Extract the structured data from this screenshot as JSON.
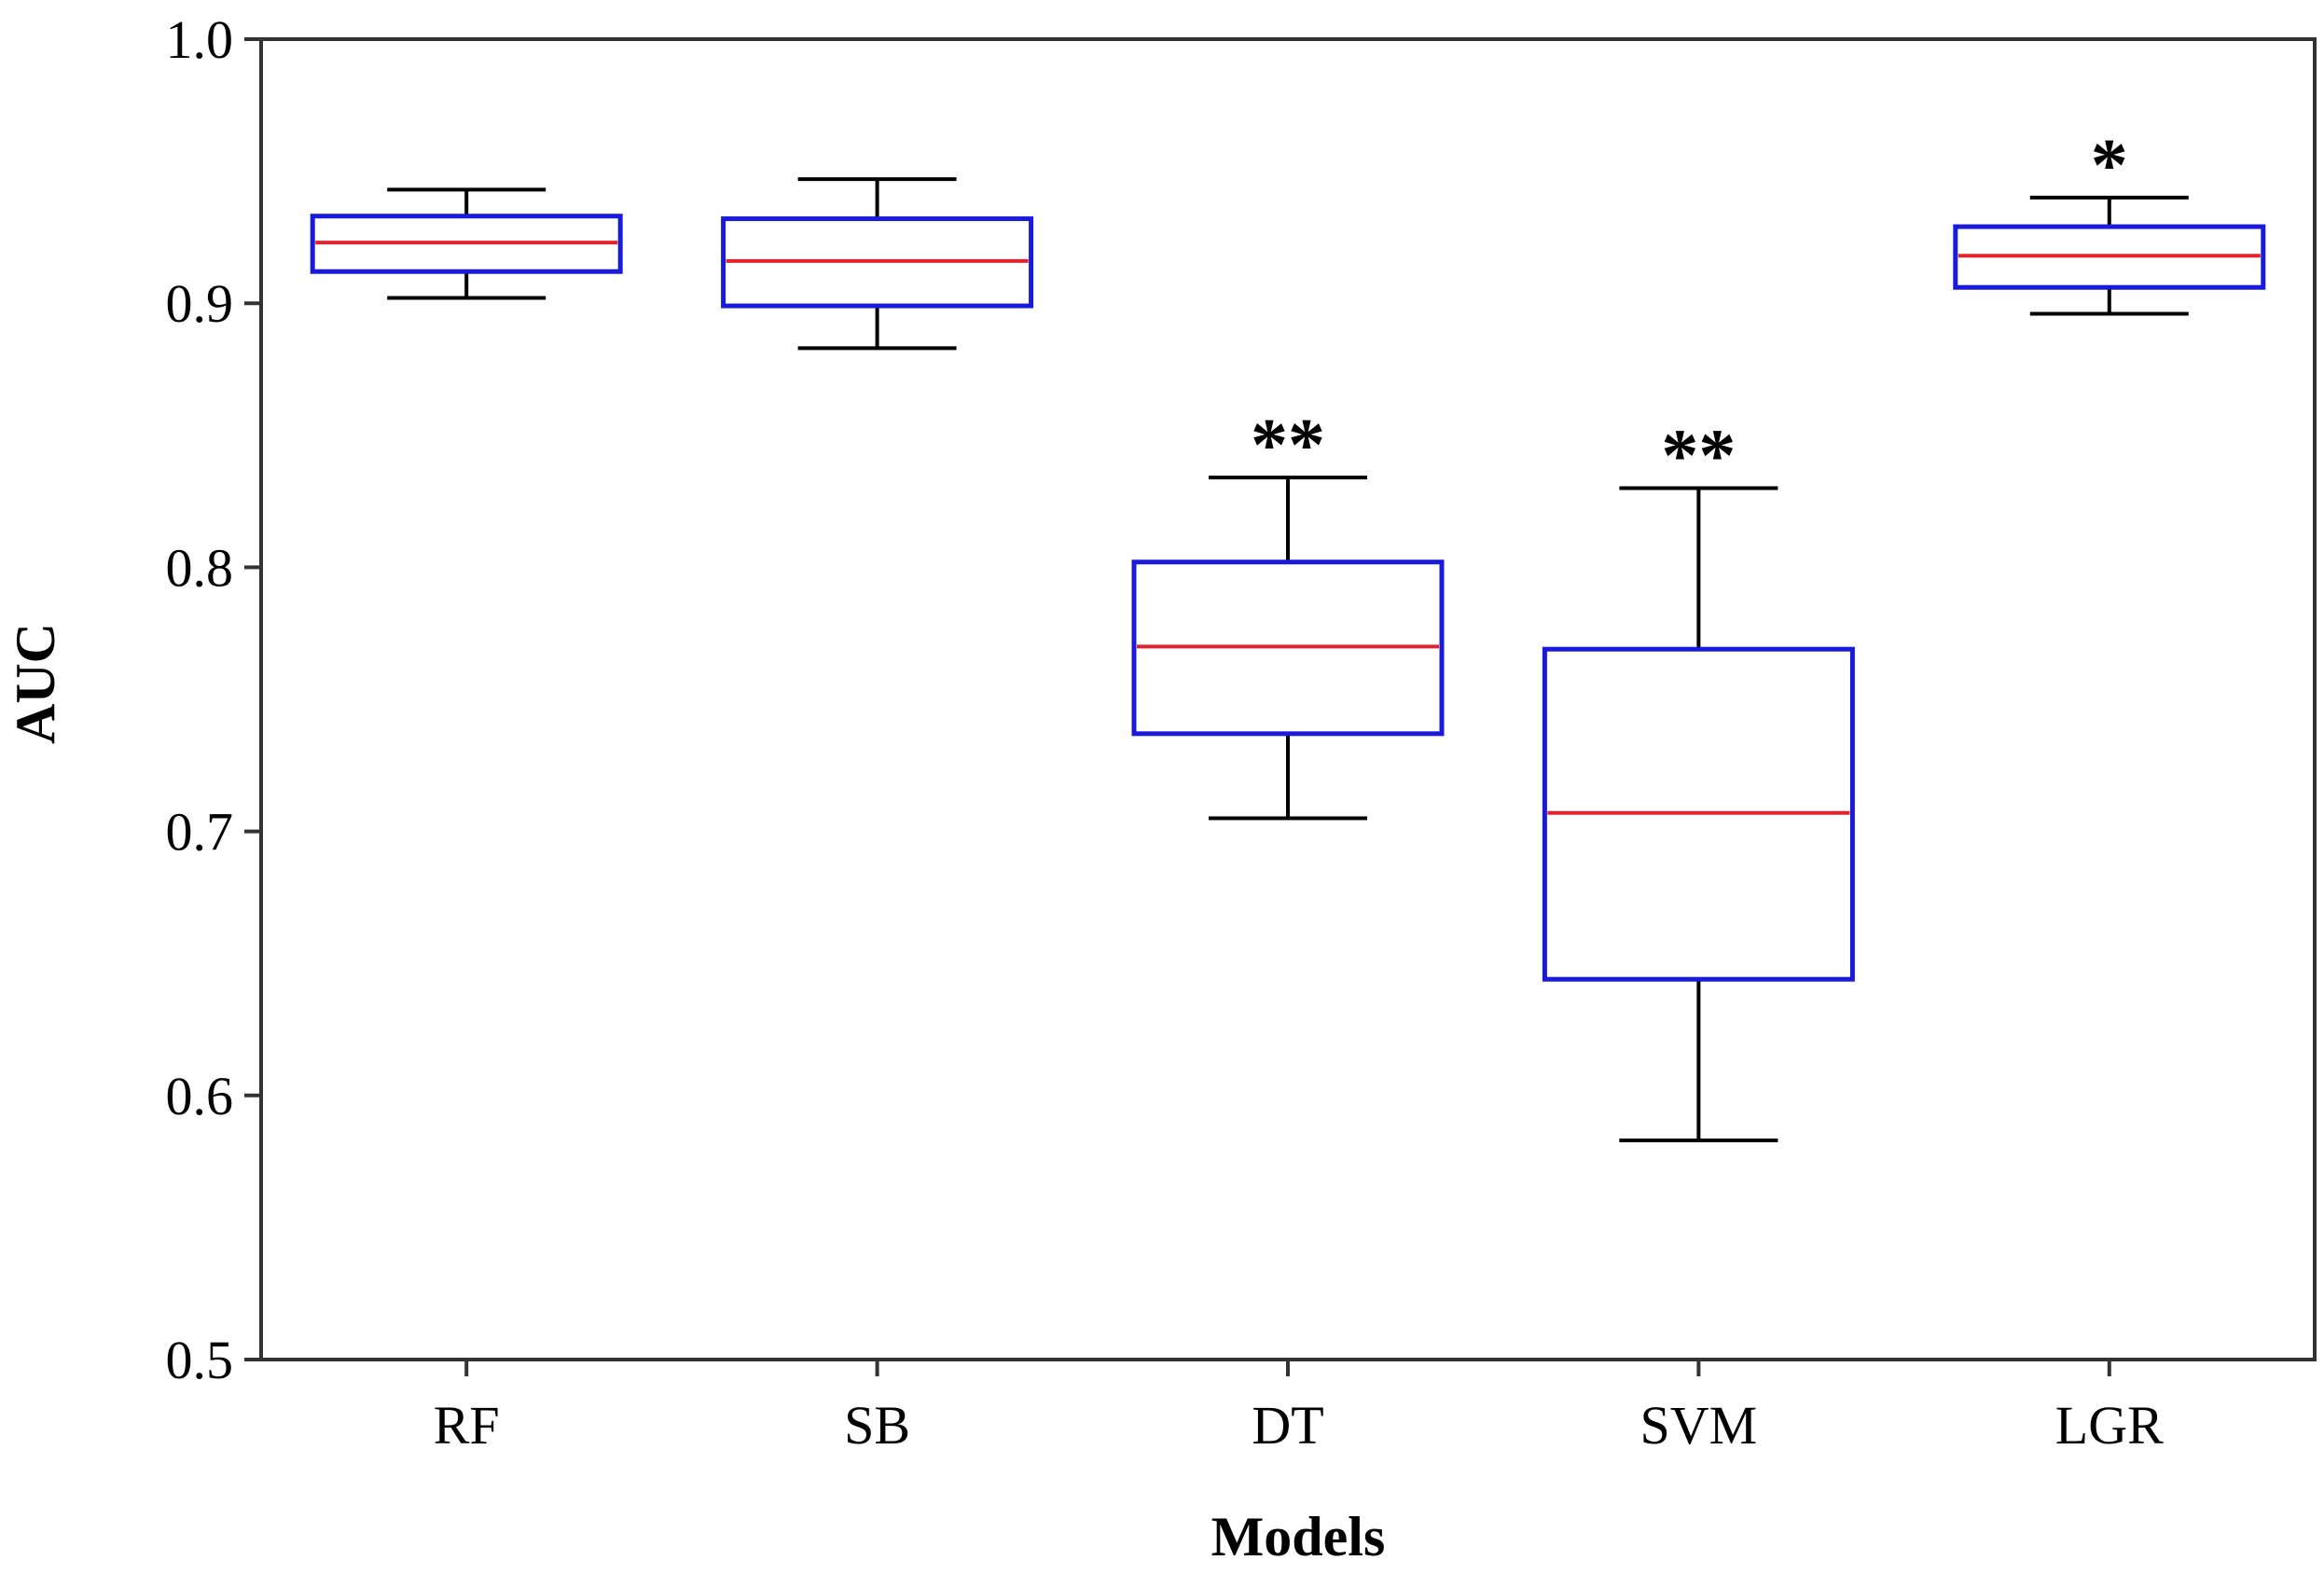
{
  "chart_data": {
    "type": "boxplot",
    "title": "",
    "xlabel": "Models",
    "ylabel": "AUC",
    "ylim": [
      0.5,
      1.0
    ],
    "yticks": [
      0.5,
      0.6,
      0.7,
      0.8,
      0.9,
      1.0
    ],
    "ytick_labels": [
      "0.5",
      "0.6",
      "0.7",
      "0.8",
      "0.9",
      "1.0"
    ],
    "grid": false,
    "colors": {
      "box": "#1a1adb",
      "median": "#e0242b",
      "whisker": "#000000"
    },
    "categories": [
      "RF",
      "SB",
      "DT",
      "SVM",
      "LGR"
    ],
    "boxes": [
      {
        "name": "RF",
        "whisker_low": 0.902,
        "q1": 0.912,
        "median": 0.923,
        "q3": 0.933,
        "whisker_high": 0.943,
        "annotation": ""
      },
      {
        "name": "SB",
        "whisker_low": 0.883,
        "q1": 0.899,
        "median": 0.916,
        "q3": 0.932,
        "whisker_high": 0.947,
        "annotation": ""
      },
      {
        "name": "DT",
        "whisker_low": 0.705,
        "q1": 0.737,
        "median": 0.77,
        "q3": 0.802,
        "whisker_high": 0.834,
        "annotation": "**"
      },
      {
        "name": "SVM",
        "whisker_low": 0.583,
        "q1": 0.644,
        "median": 0.707,
        "q3": 0.769,
        "whisker_high": 0.83,
        "annotation": "**"
      },
      {
        "name": "LGR",
        "whisker_low": 0.896,
        "q1": 0.906,
        "median": 0.918,
        "q3": 0.929,
        "whisker_high": 0.94,
        "annotation": "*"
      }
    ]
  }
}
